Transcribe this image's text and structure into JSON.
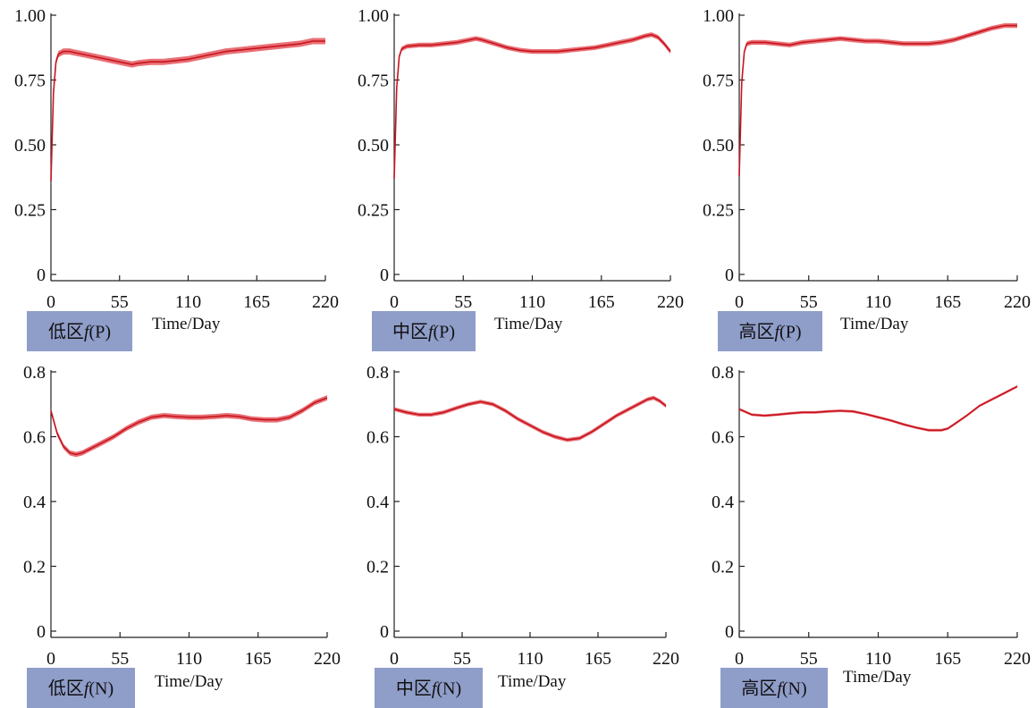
{
  "colors": {
    "series": "#c8141e",
    "band": "#e04048",
    "tag_bg": "#8f9dc9",
    "axis": "#222222"
  },
  "chart_data": [
    {
      "type": "line",
      "tag": "低区f(P)",
      "tag_prefix": "低区",
      "tag_var": "f",
      "tag_suffix": "(P)",
      "xlabel": "Time/Day",
      "xlim": [
        0,
        220
      ],
      "ylim": [
        0,
        1.0
      ],
      "xticks": [
        0,
        55,
        110,
        165,
        220
      ],
      "yticks": [
        0,
        0.25,
        0.5,
        0.75,
        1.0
      ],
      "ytick_labels": [
        "0",
        "0.25",
        "0.50",
        "0.75",
        "1.00"
      ],
      "grid": false,
      "series": [
        {
          "x": [
            0,
            2,
            4,
            6,
            10,
            15,
            20,
            30,
            40,
            50,
            60,
            65,
            70,
            80,
            90,
            100,
            110,
            120,
            130,
            140,
            150,
            160,
            170,
            180,
            190,
            200,
            210,
            220
          ],
          "y": [
            0.36,
            0.7,
            0.82,
            0.85,
            0.86,
            0.86,
            0.855,
            0.845,
            0.835,
            0.825,
            0.815,
            0.81,
            0.815,
            0.82,
            0.82,
            0.825,
            0.83,
            0.84,
            0.85,
            0.86,
            0.865,
            0.87,
            0.875,
            0.88,
            0.885,
            0.89,
            0.9,
            0.9
          ],
          "band": 0.012
        }
      ]
    },
    {
      "type": "line",
      "tag": "中区f(P)",
      "tag_prefix": "中区",
      "tag_var": "f",
      "tag_suffix": "(P)",
      "xlabel": "Time/Day",
      "xlim": [
        0,
        220
      ],
      "ylim": [
        0,
        1.0
      ],
      "xticks": [
        0,
        55,
        110,
        165,
        220
      ],
      "yticks": [
        0,
        0.25,
        0.5,
        0.75,
        1.0
      ],
      "ytick_labels": [
        "0",
        "0.25",
        "0.50",
        "0.75",
        "1.00"
      ],
      "grid": false,
      "series": [
        {
          "x": [
            0,
            2,
            4,
            6,
            10,
            20,
            30,
            40,
            50,
            60,
            65,
            70,
            80,
            90,
            100,
            110,
            120,
            130,
            140,
            150,
            160,
            170,
            180,
            190,
            200,
            205,
            210,
            215,
            220
          ],
          "y": [
            0.37,
            0.72,
            0.84,
            0.87,
            0.88,
            0.885,
            0.885,
            0.89,
            0.895,
            0.905,
            0.91,
            0.905,
            0.89,
            0.875,
            0.865,
            0.86,
            0.86,
            0.86,
            0.865,
            0.87,
            0.875,
            0.885,
            0.895,
            0.905,
            0.92,
            0.925,
            0.915,
            0.89,
            0.86
          ],
          "band": 0.009
        }
      ]
    },
    {
      "type": "line",
      "tag": "高区f(P)",
      "tag_prefix": "高区",
      "tag_var": "f",
      "tag_suffix": "(P)",
      "xlabel": "Time/Day",
      "xlim": [
        0,
        220
      ],
      "ylim": [
        0,
        1.0
      ],
      "xticks": [
        0,
        55,
        110,
        165,
        220
      ],
      "yticks": [
        0,
        0.25,
        0.5,
        0.75,
        1.0
      ],
      "ytick_labels": [
        "0",
        "0.25",
        "0.50",
        "0.75",
        "1.00"
      ],
      "grid": false,
      "series": [
        {
          "x": [
            0,
            2,
            4,
            6,
            10,
            20,
            30,
            40,
            50,
            60,
            70,
            80,
            90,
            100,
            110,
            120,
            130,
            140,
            150,
            160,
            170,
            180,
            190,
            200,
            210,
            220
          ],
          "y": [
            0.38,
            0.74,
            0.86,
            0.89,
            0.895,
            0.895,
            0.89,
            0.885,
            0.895,
            0.9,
            0.905,
            0.91,
            0.905,
            0.9,
            0.9,
            0.895,
            0.89,
            0.89,
            0.89,
            0.895,
            0.905,
            0.92,
            0.935,
            0.95,
            0.96,
            0.96
          ],
          "band": 0.009
        }
      ]
    },
    {
      "type": "line",
      "tag": "低区f(N)",
      "tag_prefix": "低区",
      "tag_var": "f",
      "tag_suffix": "(N)",
      "xlabel": "Time/Day",
      "xlim": [
        0,
        220
      ],
      "ylim": [
        0,
        0.8
      ],
      "xticks": [
        0,
        55,
        110,
        165,
        220
      ],
      "yticks": [
        0,
        0.2,
        0.4,
        0.6,
        0.8
      ],
      "ytick_labels": [
        "0",
        "0.2",
        "0.4",
        "0.6",
        "0.8"
      ],
      "grid": false,
      "series": [
        {
          "x": [
            0,
            5,
            10,
            15,
            20,
            25,
            30,
            40,
            50,
            60,
            70,
            80,
            90,
            100,
            110,
            120,
            130,
            140,
            150,
            160,
            170,
            180,
            190,
            200,
            210,
            220
          ],
          "y": [
            0.68,
            0.61,
            0.57,
            0.55,
            0.545,
            0.55,
            0.56,
            0.58,
            0.6,
            0.625,
            0.645,
            0.66,
            0.665,
            0.662,
            0.66,
            0.66,
            0.662,
            0.665,
            0.662,
            0.655,
            0.652,
            0.652,
            0.66,
            0.68,
            0.705,
            0.72
          ],
          "band": 0.008
        }
      ]
    },
    {
      "type": "line",
      "tag": "中区f(N)",
      "tag_prefix": "中区",
      "tag_var": "f",
      "tag_suffix": "(N)",
      "xlabel": "Time/Day",
      "xlim": [
        0,
        220
      ],
      "ylim": [
        0,
        0.8
      ],
      "xticks": [
        0,
        55,
        110,
        165,
        220
      ],
      "yticks": [
        0,
        0.2,
        0.4,
        0.6,
        0.8
      ],
      "ytick_labels": [
        "0",
        "0.2",
        "0.4",
        "0.6",
        "0.8"
      ],
      "grid": false,
      "series": [
        {
          "x": [
            0,
            10,
            20,
            30,
            40,
            50,
            60,
            70,
            80,
            90,
            100,
            110,
            120,
            130,
            140,
            150,
            160,
            170,
            180,
            190,
            200,
            205,
            210,
            215,
            220
          ],
          "y": [
            0.685,
            0.675,
            0.668,
            0.668,
            0.675,
            0.688,
            0.7,
            0.708,
            0.7,
            0.68,
            0.655,
            0.635,
            0.615,
            0.6,
            0.59,
            0.595,
            0.615,
            0.64,
            0.665,
            0.685,
            0.705,
            0.715,
            0.72,
            0.71,
            0.695
          ],
          "band": 0.006
        }
      ]
    },
    {
      "type": "line",
      "tag": "高区f(N)",
      "tag_prefix": "高区",
      "tag_var": "f",
      "tag_suffix": "(N)",
      "xlabel": "Time/Day",
      "xlim": [
        0,
        220
      ],
      "ylim": [
        0,
        0.8
      ],
      "xticks": [
        0,
        55,
        110,
        165,
        220
      ],
      "yticks": [
        0,
        0.2,
        0.4,
        0.6,
        0.8
      ],
      "ytick_labels": [
        "0",
        "0.2",
        "0.4",
        "0.6",
        "0.8"
      ],
      "grid": false,
      "series": [
        {
          "x": [
            0,
            10,
            20,
            30,
            40,
            50,
            60,
            70,
            80,
            90,
            100,
            110,
            120,
            130,
            140,
            150,
            160,
            165,
            170,
            180,
            190,
            200,
            210,
            220
          ],
          "y": [
            0.685,
            0.668,
            0.665,
            0.668,
            0.672,
            0.675,
            0.675,
            0.678,
            0.68,
            0.678,
            0.67,
            0.66,
            0.65,
            0.638,
            0.628,
            0.62,
            0.62,
            0.625,
            0.638,
            0.665,
            0.695,
            0.715,
            0.735,
            0.755
          ],
          "band": 0.004
        }
      ]
    }
  ]
}
